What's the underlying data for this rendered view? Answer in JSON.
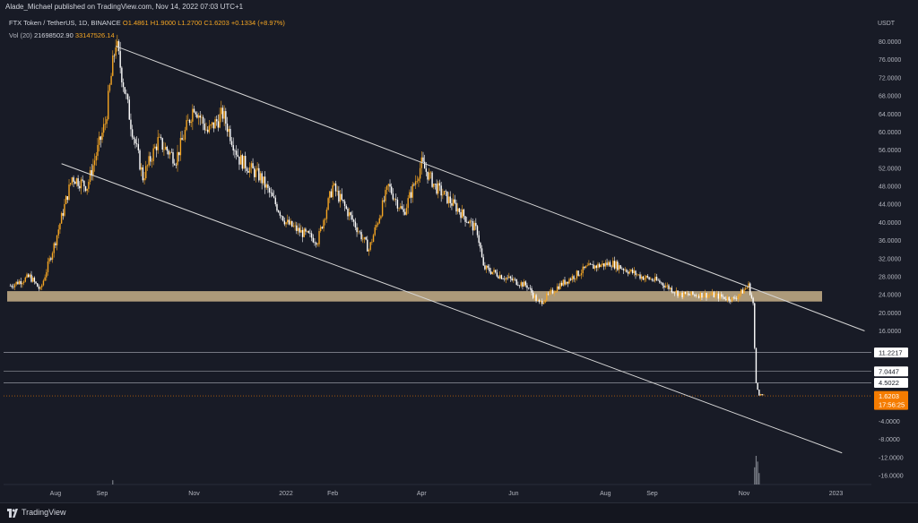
{
  "header": {
    "publisher_line": "Alade_Michael published on TradingView.com, Nov 14, 2022 07:03 UTC+1",
    "symbol": "FTX Token / TetherUS, 1D, BINANCE",
    "open": "O1.4861",
    "high": "H1.9000",
    "low": "L1.2700",
    "close": "C1.6203",
    "change": "+0.1334 (+8.97%)",
    "vol_label": "Vol (20)",
    "vol_value": "21698502.90",
    "vol_ma": "33147526.14"
  },
  "footer": {
    "brand": "TradingView"
  },
  "colors": {
    "background": "#181b26",
    "candle": "#f5a623",
    "candle_down": "#ffffff",
    "support_zone": "#c8b089",
    "last_price_tag": "#f57c00",
    "trendline": "#d6d6d6"
  },
  "chart_data": {
    "type": "candlestick",
    "currency": "USDT",
    "ylim": [
      -18,
      82
    ],
    "y_ticks": [
      80,
      76,
      72,
      68,
      64,
      60,
      56,
      52,
      48,
      44,
      40,
      36,
      32,
      28,
      24,
      20,
      16,
      -4,
      -8,
      -12,
      -16
    ],
    "y_tick_labels": [
      "80.0000",
      "76.0000",
      "72.0000",
      "68.0000",
      "64.0000",
      "60.0000",
      "56.0000",
      "52.0000",
      "48.0000",
      "44.0000",
      "40.0000",
      "36.0000",
      "32.0000",
      "28.0000",
      "24.0000",
      "20.0000",
      "16.0000",
      "-4.0000",
      "-8.0000",
      "-12.0000",
      "-16.0000"
    ],
    "x_ticks": [
      "Aug",
      "Sep",
      "Nov",
      "2022",
      "Feb",
      "Apr",
      "Jun",
      "Aug",
      "Sep",
      "Nov",
      "2023"
    ],
    "x_tick_dates": [
      "2021-08-01",
      "2021-09-01",
      "2021-11-01",
      "2022-01-01",
      "2022-02-01",
      "2022-04-01",
      "2022-06-01",
      "2022-08-01",
      "2022-09-01",
      "2022-11-01",
      "2023-01-01"
    ],
    "price_path": [
      {
        "date": "2021-07-02",
        "price": 26
      },
      {
        "date": "2021-07-15",
        "price": 28
      },
      {
        "date": "2021-07-22",
        "price": 25
      },
      {
        "date": "2021-08-01",
        "price": 36
      },
      {
        "date": "2021-08-12",
        "price": 50
      },
      {
        "date": "2021-08-22",
        "price": 48
      },
      {
        "date": "2021-09-03",
        "price": 62
      },
      {
        "date": "2021-09-10",
        "price": 80
      },
      {
        "date": "2021-09-20",
        "price": 62
      },
      {
        "date": "2021-09-28",
        "price": 50
      },
      {
        "date": "2021-10-08",
        "price": 58
      },
      {
        "date": "2021-10-20",
        "price": 54
      },
      {
        "date": "2021-11-01",
        "price": 66
      },
      {
        "date": "2021-11-10",
        "price": 60
      },
      {
        "date": "2021-11-20",
        "price": 64
      },
      {
        "date": "2021-12-01",
        "price": 54
      },
      {
        "date": "2021-12-15",
        "price": 50
      },
      {
        "date": "2022-01-01",
        "price": 40
      },
      {
        "date": "2022-01-10",
        "price": 38
      },
      {
        "date": "2022-01-22",
        "price": 36
      },
      {
        "date": "2022-02-01",
        "price": 48
      },
      {
        "date": "2022-02-15",
        "price": 40
      },
      {
        "date": "2022-02-25",
        "price": 34
      },
      {
        "date": "2022-03-10",
        "price": 48
      },
      {
        "date": "2022-03-20",
        "price": 42
      },
      {
        "date": "2022-04-01",
        "price": 53
      },
      {
        "date": "2022-04-10",
        "price": 48
      },
      {
        "date": "2022-04-25",
        "price": 43
      },
      {
        "date": "2022-05-08",
        "price": 38
      },
      {
        "date": "2022-05-12",
        "price": 30
      },
      {
        "date": "2022-05-25",
        "price": 28
      },
      {
        "date": "2022-06-10",
        "price": 26
      },
      {
        "date": "2022-06-18",
        "price": 22
      },
      {
        "date": "2022-07-01",
        "price": 26
      },
      {
        "date": "2022-07-20",
        "price": 30
      },
      {
        "date": "2022-08-05",
        "price": 31
      },
      {
        "date": "2022-08-25",
        "price": 28
      },
      {
        "date": "2022-09-05",
        "price": 27
      },
      {
        "date": "2022-09-20",
        "price": 24
      },
      {
        "date": "2022-10-10",
        "price": 24
      },
      {
        "date": "2022-10-25",
        "price": 23
      },
      {
        "date": "2022-11-04",
        "price": 26
      },
      {
        "date": "2022-11-07",
        "price": 22
      },
      {
        "date": "2022-11-08",
        "price": 12
      },
      {
        "date": "2022-11-09",
        "price": 4.5
      },
      {
        "date": "2022-11-11",
        "price": 2
      },
      {
        "date": "2022-11-14",
        "price": 1.62
      }
    ],
    "support_zone": {
      "low": 22.5,
      "high": 24.8
    },
    "trendlines": [
      {
        "name": "upper",
        "from": {
          "date": "2021-09-10",
          "price": 79
        },
        "to": {
          "date": "2023-01-20",
          "price": 16
        }
      },
      {
        "name": "lower",
        "from": {
          "date": "2021-08-05",
          "price": 53
        },
        "to": {
          "date": "2023-01-05",
          "price": -11
        }
      }
    ],
    "horizontal_levels": [
      {
        "value": 11.2217,
        "label": "11.2217"
      },
      {
        "value": 7.0447,
        "label": "7.0447"
      },
      {
        "value": 4.5022,
        "label": "4.5022"
      }
    ],
    "last_price": {
      "value": 1.6203,
      "label": "1.6203",
      "countdown": "17:56:25"
    },
    "volume_spikes": [
      {
        "date": "2021-09-08",
        "level": 0.15
      },
      {
        "date": "2022-11-08",
        "level": 0.6
      },
      {
        "date": "2022-11-09",
        "level": 1.0
      },
      {
        "date": "2022-11-10",
        "level": 0.8
      },
      {
        "date": "2022-11-11",
        "level": 0.4
      }
    ]
  }
}
